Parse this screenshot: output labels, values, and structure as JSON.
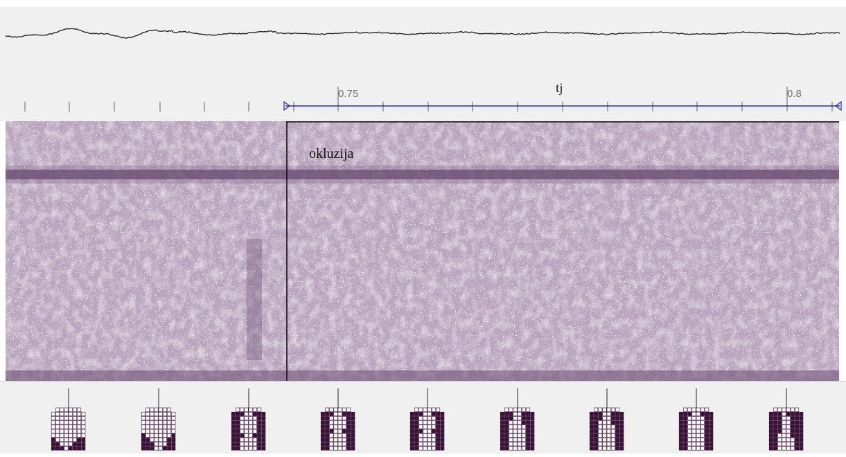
{
  "ruler": {
    "tick_labels": [
      "0.75",
      "0.8"
    ],
    "segment_label": "tj"
  },
  "spectrogram": {
    "annotation": "okluzija"
  },
  "palatograms": {
    "count": 9,
    "grid_cols": 8,
    "grid_rows": 10,
    "patterns": [
      [
        "00000000",
        "00000000",
        "00000000",
        "00000000",
        "00000000",
        "00000000",
        "00000000",
        "10000011",
        "11000111",
        "11101111"
      ],
      [
        "00000000",
        "00000000",
        "00000000",
        "00000000",
        "00000000",
        "00000000",
        "10000001",
        "11000011",
        "11100011",
        "11100111"
      ],
      [
        "00000000",
        "11100111",
        "11000011",
        "11000011",
        "11000011",
        "11000011",
        "11100111",
        "11000011",
        "11000011",
        "11000011"
      ],
      [
        "00000000",
        "11100111",
        "11000011",
        "11000011",
        "11000011",
        "11100111",
        "11000011",
        "11000011",
        "11000011",
        "11000011"
      ],
      [
        "00000000",
        "11100111",
        "11000011",
        "11000011",
        "11000011",
        "11100111",
        "11000011",
        "11000011",
        "11000011",
        "11000011"
      ],
      [
        "00000000",
        "11100111",
        "11100111",
        "11000111",
        "11000011",
        "11000011",
        "11000011",
        "11000011",
        "11000011",
        "11000011"
      ],
      [
        "00000000",
        "11100111",
        "11100111",
        "11000111",
        "11000011",
        "11000011",
        "11000011",
        "11000011",
        "11000011",
        "11000011"
      ],
      [
        "00000000",
        "11100111",
        "11000011",
        "11000011",
        "11000011",
        "11000011",
        "11000011",
        "11000011",
        "11000011",
        "11000011"
      ],
      [
        "00000000",
        "11101111",
        "11100111",
        "11100111",
        "11100111",
        "11100111",
        "11000111",
        "11000011",
        "11000011",
        "11000011"
      ]
    ]
  },
  "colors": {
    "waveform": "#1a1a1a",
    "ruler_ticks": "#606060",
    "segment_line": "#2a2aa8",
    "spectro_base": "#b9a4bd",
    "spectro_dark": "#6a4a72",
    "palate_on": "#3a1238",
    "palate_off": "#ffffff"
  }
}
